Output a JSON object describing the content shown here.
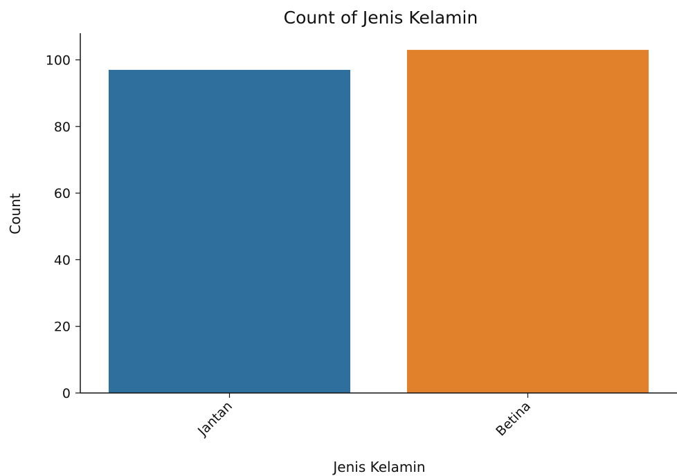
{
  "chart_data": {
    "type": "bar",
    "title": "Count of Jenis Kelamin",
    "xlabel": "Jenis Kelamin",
    "ylabel": "Count",
    "categories": [
      "Jantan",
      "Betina"
    ],
    "values": [
      97,
      103
    ],
    "colors": [
      "#2e6f9e",
      "#e1812c"
    ],
    "ylim": [
      0,
      108
    ],
    "yticks": [
      "0",
      "20",
      "40",
      "60",
      "80",
      "100"
    ],
    "x_tick_rotation": "45 degrees",
    "grid": false,
    "legend": "none"
  }
}
